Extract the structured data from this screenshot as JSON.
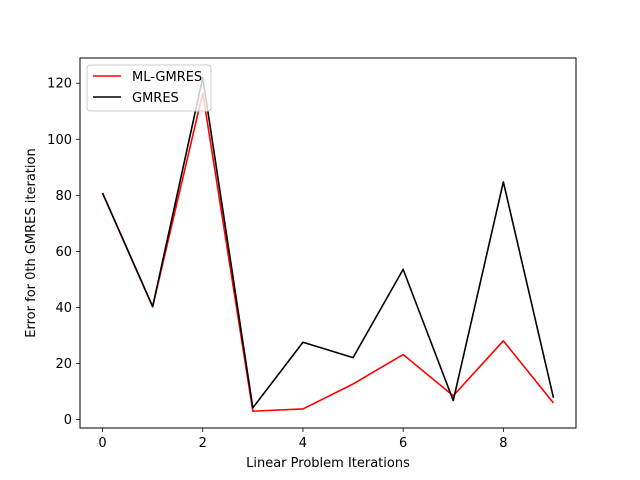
{
  "chart_data": {
    "type": "line",
    "xlabel": "Linear Problem Iterations",
    "ylabel": "Error for 0th GMRES iteration",
    "x": [
      0,
      1,
      2,
      3,
      4,
      5,
      6,
      7,
      8,
      9
    ],
    "xlim": [
      -0.45,
      9.45
    ],
    "ylim": [
      -3,
      129
    ],
    "xticks": [
      0,
      2,
      4,
      6,
      8
    ],
    "yticks": [
      0,
      20,
      40,
      60,
      80,
      100,
      120
    ],
    "grid": false,
    "legend_position": "top-left",
    "series": [
      {
        "name": "ML-GMRES",
        "color": "#ff0000",
        "values": [
          80.8,
          40.3,
          116.5,
          3.0,
          3.8,
          12.7,
          23.2,
          8.5,
          28.1,
          5.9
        ]
      },
      {
        "name": "GMRES",
        "color": "#000000",
        "values": [
          80.8,
          40.3,
          122.0,
          4.2,
          27.6,
          22.1,
          53.6,
          6.8,
          84.8,
          7.8
        ]
      }
    ]
  }
}
